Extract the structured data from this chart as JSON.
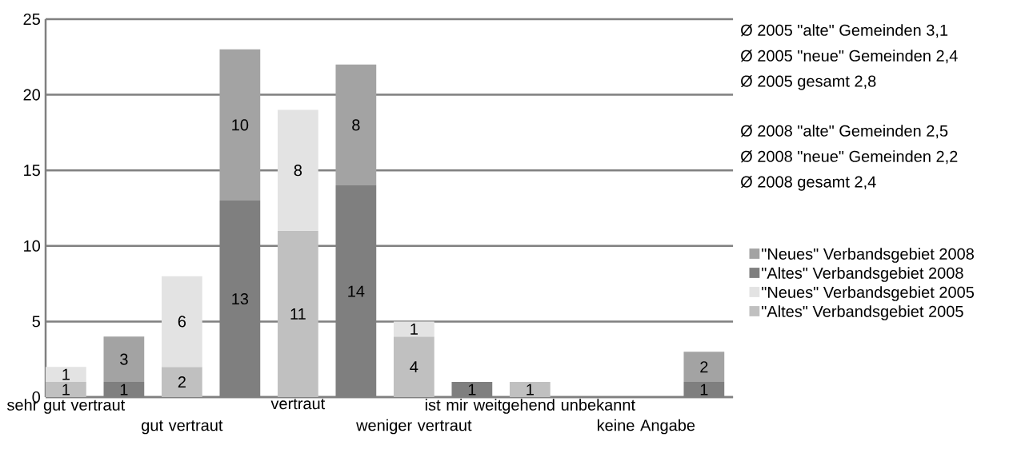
{
  "chart_data": {
    "type": "bar",
    "stacked": true,
    "categories": [
      "sehr gut vertraut",
      null,
      "gut vertraut",
      null,
      "vertraut",
      null,
      "weniger vertraut",
      null,
      "ist mir weitgehend unbekannt",
      null,
      "keine Angabe",
      null
    ],
    "series": [
      {
        "name": "\"Altes\" Verbandsgebiet 2005",
        "color": "#c0c0c0",
        "values": [
          1,
          null,
          2,
          null,
          11,
          null,
          4,
          null,
          1,
          null,
          0,
          null
        ],
        "value_labels": [
          "1",
          null,
          "2",
          null,
          "11",
          null,
          "4",
          null,
          "1",
          null,
          null,
          null
        ]
      },
      {
        "name": "\"Neues\" Verbandsgebiet 2005",
        "color": "#e3e3e3",
        "values": [
          1,
          null,
          6,
          null,
          8,
          null,
          1,
          null,
          0,
          null,
          0,
          null
        ],
        "value_labels": [
          "1",
          null,
          "6",
          null,
          "8",
          null,
          "1",
          null,
          null,
          null,
          null,
          null
        ]
      },
      {
        "name": "\"Altes\" Verbandsgebiet 2008",
        "color": "#7f7f7f",
        "values": [
          null,
          1,
          null,
          13,
          null,
          14,
          null,
          1,
          null,
          0,
          null,
          1
        ],
        "value_labels": [
          null,
          "1",
          null,
          "13",
          null,
          "14",
          null,
          "1",
          null,
          null,
          null,
          "1"
        ]
      },
      {
        "name": "\"Neues\" Verbandsgebiet 2008",
        "color": "#a3a3a3",
        "values": [
          null,
          3,
          null,
          10,
          null,
          8,
          null,
          0,
          null,
          0,
          null,
          2
        ],
        "value_labels": [
          null,
          "3",
          null,
          "10",
          null,
          "8",
          null,
          null,
          null,
          null,
          null,
          "2"
        ]
      }
    ],
    "ylim": [
      0,
      25
    ],
    "yticks": [
      0,
      5,
      10,
      15,
      20,
      25
    ],
    "grid": "y",
    "legend": "right",
    "annotations": [
      "Ø 2005 \"alte\" Gemeinden 3,1",
      "Ø 2005 \"neue\" Gemeinden 2,4",
      "Ø 2005 gesamt 2,8",
      "Ø 2008 \"alte\" Gemeinden 2,5",
      "Ø 2008 \"neue\" Gemeinden 2,2",
      "Ø 2008 gesamt 2,4"
    ]
  }
}
